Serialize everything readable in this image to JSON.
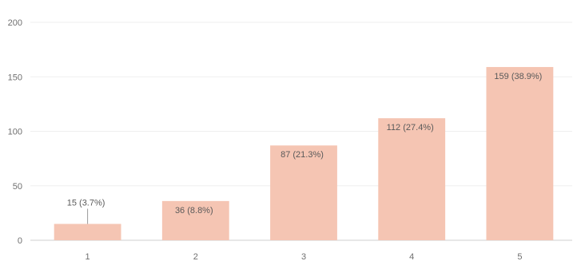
{
  "chart_data": {
    "type": "bar",
    "categories": [
      "1",
      "2",
      "3",
      "4",
      "5"
    ],
    "values": [
      15,
      36,
      87,
      112,
      159
    ],
    "data_labels": [
      "15 (3.7%)",
      "36 (8.8%)",
      "87 (21.3%)",
      "112 (27.4%)",
      "159 (38.9%)"
    ],
    "yticks": [
      0,
      50,
      100,
      150,
      200
    ],
    "ylim": [
      0,
      200
    ],
    "grid": true,
    "legend": "none",
    "bar_color": "#f5c5b3",
    "label_color": "#5a5a5a",
    "axis_text_color": "#6f6f6f"
  }
}
